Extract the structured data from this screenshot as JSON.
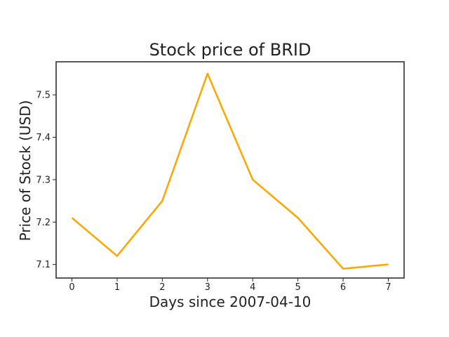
{
  "chart_data": {
    "type": "line",
    "title": "Stock price of BRID",
    "xlabel": "Days since 2007-04-10",
    "ylabel": "Price of Stock (USD)",
    "x": [
      0,
      1,
      2,
      3,
      4,
      5,
      6,
      7
    ],
    "x_tick_labels": [
      "0",
      "1",
      "2",
      "3",
      "4",
      "5",
      "6",
      "7"
    ],
    "y_ticks": [
      7.1,
      7.2,
      7.3,
      7.4,
      7.5
    ],
    "y_tick_labels": [
      "7.1",
      "7.2",
      "7.3",
      "7.4",
      "7.5"
    ],
    "xlim": [
      -0.35,
      7.35
    ],
    "ylim": [
      7.068,
      7.578
    ],
    "grid": false,
    "series": [
      {
        "color": "#FFA500",
        "values": [
          7.21,
          7.12,
          7.25,
          7.55,
          7.3,
          7.21,
          7.09,
          7.1
        ]
      }
    ]
  }
}
